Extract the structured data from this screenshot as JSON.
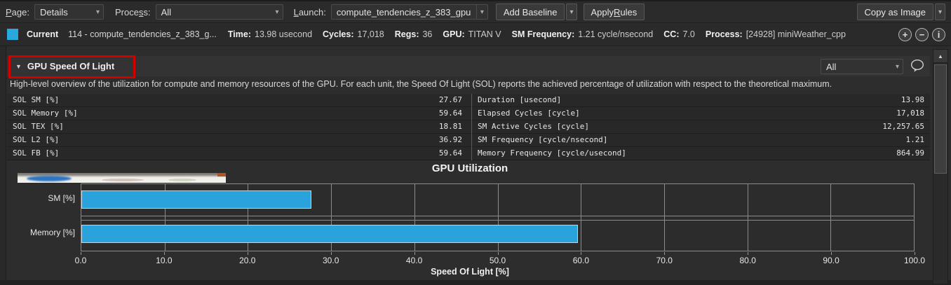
{
  "icons": {
    "chevron_down": "▾",
    "collapse": "▼",
    "scroll_up": "▲"
  },
  "toolbar": {
    "page": {
      "label": "Page:",
      "mnemonic_index": 0,
      "value": "Details"
    },
    "process": {
      "label": "Process:",
      "mnemonic_index": 5,
      "value": "All"
    },
    "launch": {
      "label": "Launch:",
      "mnemonic_index": 0,
      "value": "compute_tendencies_z_383_gpu"
    },
    "add_baseline": {
      "label": "Add Baseline"
    },
    "apply_rules": {
      "label": "Apply Rules",
      "mnemonic_index": 6
    },
    "copy_as_image": {
      "label": "Copy as Image"
    }
  },
  "current_row": {
    "swatch_color": "#2ba7df",
    "label": "Current",
    "kernel": "114 - compute_tendencies_z_383_g...",
    "stats": [
      {
        "label": "Time:",
        "value": "13.98 usecond"
      },
      {
        "label": "Cycles:",
        "value": "17,018"
      },
      {
        "label": "Regs:",
        "value": "36"
      },
      {
        "label": "GPU:",
        "value": "TITAN V"
      },
      {
        "label": "SM Frequency:",
        "value": "1.21 cycle/nsecond"
      },
      {
        "label": "CC:",
        "value": "7.0"
      },
      {
        "label": "Process:",
        "value": "[24928] miniWeather_cpp"
      }
    ],
    "actions": [
      {
        "icon": "plus-circle",
        "glyph": "+"
      },
      {
        "icon": "minus-circle",
        "glyph": "−"
      },
      {
        "icon": "info-circle",
        "glyph": "i"
      }
    ]
  },
  "section": {
    "title": "GPU Speed Of Light",
    "highlight_color": "#d40000",
    "filter_value": "All",
    "description": "High-level overview of the utilization for compute and memory resources of the GPU. For each unit, the Speed Of Light (SOL) reports the achieved percentage of utilization with respect to the theoretical maximum."
  },
  "metrics_table": {
    "left": [
      {
        "name": "SOL SM [%]",
        "value": "27.67"
      },
      {
        "name": "SOL Memory [%]",
        "value": "59.64"
      },
      {
        "name": "SOL TEX [%]",
        "value": "18.81"
      },
      {
        "name": "SOL L2 [%]",
        "value": "36.92"
      },
      {
        "name": "SOL FB [%]",
        "value": "59.64"
      }
    ],
    "right": [
      {
        "name": "Duration [usecond]",
        "value": "13.98"
      },
      {
        "name": "Elapsed Cycles [cycle]",
        "value": "17,018"
      },
      {
        "name": "SM Active Cycles [cycle]",
        "value": "12,257.65"
      },
      {
        "name": "SM Frequency [cycle/nsecond]",
        "value": "1.21"
      },
      {
        "name": "Memory Frequency [cycle/usecond]",
        "value": "864.99"
      }
    ]
  },
  "chart_data": {
    "type": "bar",
    "orientation": "horizontal",
    "title": "GPU Utilization",
    "categories": [
      "SM [%]",
      "Memory [%]"
    ],
    "values": [
      27.67,
      59.64
    ],
    "xlabel": "Speed Of Light [%]",
    "xlim": [
      0,
      100
    ],
    "xticks": [
      0,
      10,
      20,
      30,
      40,
      50,
      60,
      70,
      80,
      90,
      100
    ],
    "xtick_labels": [
      "0.0",
      "10.0",
      "20.0",
      "30.0",
      "40.0",
      "50.0",
      "60.0",
      "70.0",
      "80.0",
      "90.0",
      "100.0"
    ],
    "bar_color": "#2aa3dc",
    "grid": "vertical",
    "gridline_color": "#8b8b8b",
    "legend": null
  }
}
